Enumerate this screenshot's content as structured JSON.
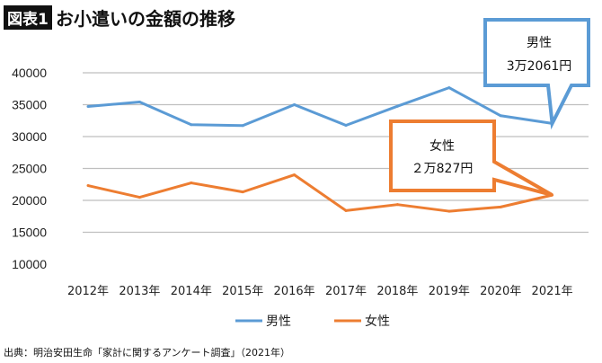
{
  "header": {
    "badge": "図表1",
    "title": "お小遣いの金額の推移"
  },
  "source": "出典：明治安田生命「家計に関するアンケート調査」（2021年）",
  "chart_data": {
    "type": "line",
    "categories": [
      "2012年",
      "2013年",
      "2014年",
      "2015年",
      "2016年",
      "2017年",
      "2018年",
      "2019年",
      "2020年",
      "2021年"
    ],
    "ylim": [
      10000,
      40000
    ],
    "yticks": [
      10000,
      15000,
      20000,
      25000,
      30000,
      35000,
      40000
    ],
    "grid": true,
    "legend_placement": "bottom",
    "series": [
      {
        "name": "男性",
        "color": "#5b9bd5",
        "values": [
          34720,
          35420,
          31860,
          31720,
          35000,
          31760,
          34760,
          37660,
          33270,
          32061
        ]
      },
      {
        "name": "女性",
        "color": "#ed7d31",
        "values": [
          22320,
          20480,
          22740,
          21320,
          24000,
          18400,
          19340,
          18300,
          18960,
          20827
        ]
      }
    ],
    "annotations": [
      {
        "series": "男性",
        "line1": "男性",
        "line2": "3万2061円"
      },
      {
        "series": "女性",
        "line1": "女性",
        "line2": "２万827円"
      }
    ]
  }
}
